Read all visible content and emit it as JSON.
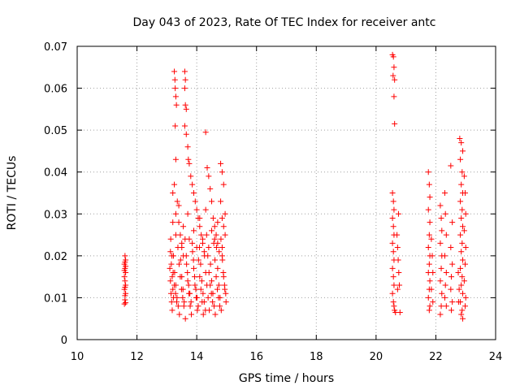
{
  "chart_data": {
    "type": "scatter",
    "title": "Day 043 of 2023, Rate Of TEC Index for receiver antc",
    "xlabel": "GPS time / hours",
    "ylabel": "ROTI / TECUs",
    "xlim": [
      10,
      24
    ],
    "ylim": [
      0,
      0.07
    ],
    "xticks": [
      10,
      12,
      14,
      16,
      18,
      20,
      22,
      24
    ],
    "xtick_labels": [
      "10",
      "12",
      "14",
      "16",
      "18",
      "20",
      "22",
      "24"
    ],
    "yticks": [
      0,
      0.01,
      0.02,
      0.03,
      0.04,
      0.05,
      0.06,
      0.07
    ],
    "ytick_labels": [
      "0",
      "0.01",
      "0.02",
      "0.03",
      "0.04",
      "0.05",
      "0.06",
      "0.07"
    ],
    "grid": true,
    "marker": "+",
    "color": "#ff0000",
    "series": [
      {
        "points": [
          [
            11.58,
            0.0085
          ],
          [
            11.6,
            0.0095
          ],
          [
            11.62,
            0.011
          ],
          [
            11.58,
            0.012
          ],
          [
            11.62,
            0.013
          ],
          [
            11.6,
            0.014
          ],
          [
            11.58,
            0.015
          ],
          [
            11.62,
            0.016
          ],
          [
            11.6,
            0.017
          ],
          [
            11.58,
            0.018
          ],
          [
            11.62,
            0.019
          ],
          [
            11.6,
            0.02
          ],
          [
            11.6,
            0.0185
          ],
          [
            11.62,
            0.0175
          ],
          [
            11.58,
            0.0165
          ],
          [
            11.6,
            0.0125
          ],
          [
            11.6,
            0.0105
          ],
          [
            11.62,
            0.0088
          ],
          [
            13.12,
            0.021
          ],
          [
            13.15,
            0.018
          ],
          [
            13.18,
            0.015
          ],
          [
            13.2,
            0.012
          ],
          [
            13.22,
            0.01
          ],
          [
            13.25,
            0.064
          ],
          [
            13.27,
            0.062
          ],
          [
            13.28,
            0.06
          ],
          [
            13.3,
            0.058
          ],
          [
            13.32,
            0.056
          ],
          [
            13.28,
            0.051
          ],
          [
            13.3,
            0.043
          ],
          [
            13.25,
            0.037
          ],
          [
            13.2,
            0.035
          ],
          [
            13.35,
            0.033
          ],
          [
            13.3,
            0.03
          ],
          [
            13.4,
            0.028
          ],
          [
            13.45,
            0.025
          ],
          [
            13.5,
            0.022
          ],
          [
            13.55,
            0.02
          ],
          [
            13.6,
            0.064
          ],
          [
            13.62,
            0.062
          ],
          [
            13.6,
            0.06
          ],
          [
            13.62,
            0.056
          ],
          [
            13.65,
            0.055
          ],
          [
            13.6,
            0.051
          ],
          [
            13.65,
            0.049
          ],
          [
            13.7,
            0.046
          ],
          [
            13.72,
            0.043
          ],
          [
            13.75,
            0.042
          ],
          [
            13.8,
            0.039
          ],
          [
            13.85,
            0.037
          ],
          [
            13.9,
            0.035
          ],
          [
            13.95,
            0.033
          ],
          [
            14.0,
            0.031
          ],
          [
            14.05,
            0.029
          ],
          [
            14.1,
            0.027
          ],
          [
            14.15,
            0.025
          ],
          [
            14.2,
            0.023
          ],
          [
            14.25,
            0.021
          ],
          [
            14.3,
            0.0495
          ],
          [
            14.35,
            0.041
          ],
          [
            14.4,
            0.039
          ],
          [
            14.45,
            0.036
          ],
          [
            14.5,
            0.033
          ],
          [
            14.55,
            0.029
          ],
          [
            14.6,
            0.027
          ],
          [
            14.65,
            0.025
          ],
          [
            14.7,
            0.023
          ],
          [
            14.75,
            0.021
          ],
          [
            14.8,
            0.042
          ],
          [
            14.85,
            0.04
          ],
          [
            14.9,
            0.037
          ],
          [
            14.8,
            0.033
          ],
          [
            14.85,
            0.029
          ],
          [
            14.9,
            0.027
          ],
          [
            14.95,
            0.025
          ],
          [
            13.1,
            0.017
          ],
          [
            13.12,
            0.014
          ],
          [
            13.14,
            0.011
          ],
          [
            13.16,
            0.009
          ],
          [
            13.18,
            0.007
          ],
          [
            13.22,
            0.02
          ],
          [
            13.26,
            0.016
          ],
          [
            13.3,
            0.013
          ],
          [
            13.34,
            0.01
          ],
          [
            13.38,
            0.008
          ],
          [
            13.42,
            0.006
          ],
          [
            13.46,
            0.019
          ],
          [
            13.5,
            0.015
          ],
          [
            13.54,
            0.012
          ],
          [
            13.58,
            0.009
          ],
          [
            13.62,
            0.005
          ],
          [
            13.66,
            0.018
          ],
          [
            13.7,
            0.014
          ],
          [
            13.74,
            0.011
          ],
          [
            13.78,
            0.008
          ],
          [
            13.82,
            0.006
          ],
          [
            13.86,
            0.021
          ],
          [
            13.9,
            0.017
          ],
          [
            13.94,
            0.013
          ],
          [
            13.98,
            0.01
          ],
          [
            14.02,
            0.007
          ],
          [
            14.06,
            0.019
          ],
          [
            14.1,
            0.015
          ],
          [
            14.14,
            0.012
          ],
          [
            14.18,
            0.009
          ],
          [
            14.22,
            0.006
          ],
          [
            14.26,
            0.02
          ],
          [
            14.3,
            0.016
          ],
          [
            14.34,
            0.013
          ],
          [
            14.38,
            0.01
          ],
          [
            14.42,
            0.007
          ],
          [
            14.46,
            0.018
          ],
          [
            14.5,
            0.014
          ],
          [
            14.54,
            0.011
          ],
          [
            14.58,
            0.008
          ],
          [
            14.62,
            0.006
          ],
          [
            14.66,
            0.022
          ],
          [
            14.7,
            0.017
          ],
          [
            14.74,
            0.013
          ],
          [
            14.78,
            0.01
          ],
          [
            14.82,
            0.007
          ],
          [
            14.86,
            0.019
          ],
          [
            14.9,
            0.015
          ],
          [
            14.94,
            0.012
          ],
          [
            14.98,
            0.009
          ],
          [
            13.13,
            0.024
          ],
          [
            13.17,
            0.02
          ],
          [
            13.21,
            0.016
          ],
          [
            13.25,
            0.013
          ],
          [
            13.29,
            0.011
          ],
          [
            13.33,
            0.009
          ],
          [
            13.37,
            0.022
          ],
          [
            13.41,
            0.018
          ],
          [
            13.45,
            0.015
          ],
          [
            13.49,
            0.012
          ],
          [
            13.53,
            0.01
          ],
          [
            13.57,
            0.008
          ],
          [
            13.61,
            0.024
          ],
          [
            13.65,
            0.02
          ],
          [
            13.69,
            0.016
          ],
          [
            13.73,
            0.013
          ],
          [
            13.77,
            0.011
          ],
          [
            13.81,
            0.009
          ],
          [
            13.85,
            0.023
          ],
          [
            13.89,
            0.019
          ],
          [
            13.93,
            0.015
          ],
          [
            13.97,
            0.012
          ],
          [
            14.01,
            0.01
          ],
          [
            14.05,
            0.008
          ],
          [
            14.09,
            0.022
          ],
          [
            14.13,
            0.018
          ],
          [
            14.17,
            0.014
          ],
          [
            14.21,
            0.011
          ],
          [
            14.25,
            0.009
          ],
          [
            14.29,
            0.007
          ],
          [
            14.33,
            0.025
          ],
          [
            14.37,
            0.02
          ],
          [
            14.41,
            0.016
          ],
          [
            14.45,
            0.013
          ],
          [
            14.49,
            0.011
          ],
          [
            14.53,
            0.009
          ],
          [
            14.57,
            0.023
          ],
          [
            14.61,
            0.019
          ],
          [
            14.65,
            0.015
          ],
          [
            14.69,
            0.012
          ],
          [
            14.73,
            0.01
          ],
          [
            14.77,
            0.008
          ],
          [
            14.81,
            0.024
          ],
          [
            14.85,
            0.02
          ],
          [
            14.89,
            0.016
          ],
          [
            14.93,
            0.013
          ],
          [
            14.97,
            0.011
          ],
          [
            13.2,
            0.028
          ],
          [
            13.4,
            0.032
          ],
          [
            13.55,
            0.027
          ],
          [
            13.7,
            0.03
          ],
          [
            13.9,
            0.026
          ],
          [
            14.1,
            0.029
          ],
          [
            14.3,
            0.031
          ],
          [
            14.5,
            0.026
          ],
          [
            14.7,
            0.028
          ],
          [
            14.95,
            0.03
          ],
          [
            13.3,
            0.025
          ],
          [
            13.5,
            0.023
          ],
          [
            13.75,
            0.024
          ],
          [
            14.0,
            0.022
          ],
          [
            14.2,
            0.024
          ],
          [
            14.4,
            0.022
          ],
          [
            14.6,
            0.024
          ],
          [
            14.85,
            0.022
          ],
          [
            20.55,
            0.068
          ],
          [
            20.58,
            0.0675
          ],
          [
            20.6,
            0.065
          ],
          [
            20.57,
            0.063
          ],
          [
            20.62,
            0.062
          ],
          [
            20.6,
            0.058
          ],
          [
            20.62,
            0.0515
          ],
          [
            20.55,
            0.035
          ],
          [
            20.58,
            0.033
          ],
          [
            20.6,
            0.031
          ],
          [
            20.55,
            0.029
          ],
          [
            20.58,
            0.027
          ],
          [
            20.6,
            0.025
          ],
          [
            20.55,
            0.023
          ],
          [
            20.58,
            0.021
          ],
          [
            20.6,
            0.019
          ],
          [
            20.55,
            0.017
          ],
          [
            20.58,
            0.015
          ],
          [
            20.6,
            0.013
          ],
          [
            20.55,
            0.011
          ],
          [
            20.58,
            0.009
          ],
          [
            20.6,
            0.008
          ],
          [
            20.62,
            0.007
          ],
          [
            20.65,
            0.0065
          ],
          [
            20.7,
            0.025
          ],
          [
            20.72,
            0.022
          ],
          [
            20.74,
            0.019
          ],
          [
            20.76,
            0.016
          ],
          [
            20.78,
            0.013
          ],
          [
            20.75,
            0.03
          ],
          [
            20.72,
            0.012
          ],
          [
            20.8,
            0.0065
          ],
          [
            21.75,
            0.04
          ],
          [
            21.78,
            0.037
          ],
          [
            21.8,
            0.034
          ],
          [
            21.75,
            0.031
          ],
          [
            21.8,
            0.028
          ],
          [
            21.78,
            0.025
          ],
          [
            21.75,
            0.022
          ],
          [
            21.8,
            0.02
          ],
          [
            21.78,
            0.018
          ],
          [
            21.75,
            0.016
          ],
          [
            21.8,
            0.014
          ],
          [
            21.78,
            0.012
          ],
          [
            21.75,
            0.01
          ],
          [
            21.8,
            0.008
          ],
          [
            21.78,
            0.007
          ],
          [
            21.85,
            0.024
          ],
          [
            21.88,
            0.02
          ],
          [
            21.9,
            0.016
          ],
          [
            21.85,
            0.012
          ],
          [
            21.9,
            0.009
          ],
          [
            22.15,
            0.032
          ],
          [
            22.18,
            0.029
          ],
          [
            22.2,
            0.026
          ],
          [
            22.15,
            0.023
          ],
          [
            22.2,
            0.02
          ],
          [
            22.18,
            0.017
          ],
          [
            22.15,
            0.014
          ],
          [
            22.2,
            0.011
          ],
          [
            22.18,
            0.008
          ],
          [
            22.15,
            0.006
          ],
          [
            22.3,
            0.035
          ],
          [
            22.32,
            0.03
          ],
          [
            22.35,
            0.025
          ],
          [
            22.3,
            0.02
          ],
          [
            22.35,
            0.016
          ],
          [
            22.32,
            0.013
          ],
          [
            22.3,
            0.01
          ],
          [
            22.35,
            0.008
          ],
          [
            22.5,
            0.0415
          ],
          [
            22.55,
            0.028
          ],
          [
            22.5,
            0.022
          ],
          [
            22.55,
            0.018
          ],
          [
            22.52,
            0.015
          ],
          [
            22.5,
            0.012
          ],
          [
            22.55,
            0.009
          ],
          [
            22.52,
            0.007
          ],
          [
            22.8,
            0.048
          ],
          [
            22.85,
            0.047
          ],
          [
            22.9,
            0.045
          ],
          [
            22.82,
            0.043
          ],
          [
            22.88,
            0.04
          ],
          [
            22.85,
            0.037
          ],
          [
            22.9,
            0.035
          ],
          [
            22.82,
            0.033
          ],
          [
            22.88,
            0.031
          ],
          [
            22.85,
            0.029
          ],
          [
            22.9,
            0.027
          ],
          [
            22.82,
            0.025
          ],
          [
            22.88,
            0.023
          ],
          [
            22.85,
            0.021
          ],
          [
            22.9,
            0.019
          ],
          [
            22.82,
            0.017
          ],
          [
            22.88,
            0.015
          ],
          [
            22.85,
            0.013
          ],
          [
            22.9,
            0.011
          ],
          [
            22.82,
            0.009
          ],
          [
            22.88,
            0.007
          ],
          [
            22.85,
            0.006
          ],
          [
            22.9,
            0.005
          ],
          [
            22.95,
            0.039
          ],
          [
            22.98,
            0.035
          ],
          [
            23.0,
            0.03
          ],
          [
            22.95,
            0.026
          ],
          [
            23.0,
            0.022
          ],
          [
            22.98,
            0.018
          ],
          [
            22.95,
            0.014
          ],
          [
            23.0,
            0.01
          ],
          [
            22.98,
            0.008
          ],
          [
            22.75,
            0.016
          ],
          [
            22.78,
            0.012
          ],
          [
            22.76,
            0.009
          ]
        ]
      }
    ]
  }
}
